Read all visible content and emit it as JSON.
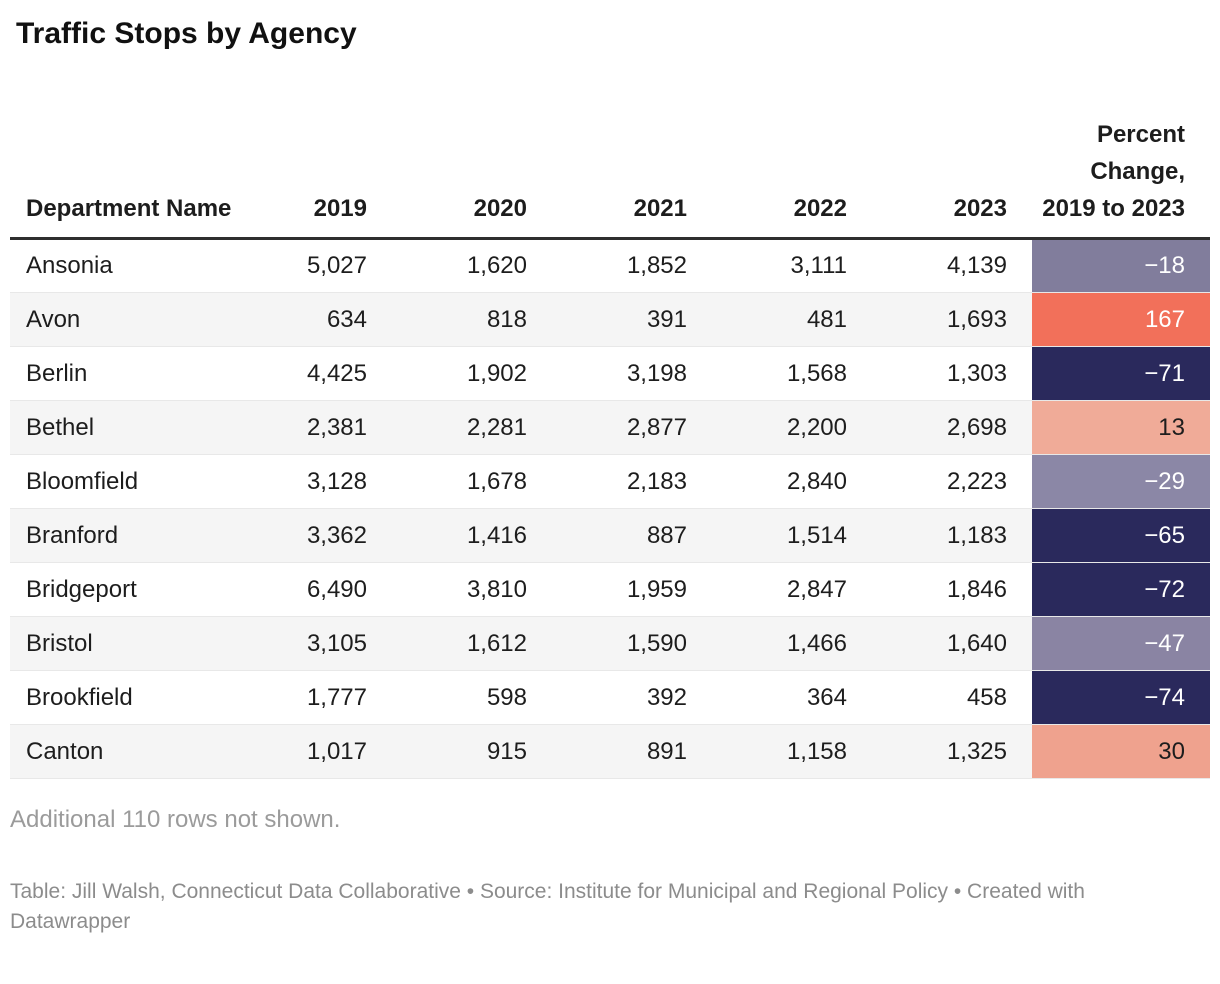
{
  "title": "Traffic Stops by Agency",
  "chart_data": {
    "type": "table",
    "title": "Traffic Stops by Agency",
    "columns": {
      "department": "Department Name",
      "years": [
        "2019",
        "2020",
        "2021",
        "2022",
        "2023"
      ],
      "percent": "Percent Change, 2019 to 2023"
    },
    "rows": [
      {
        "department": "Ansonia",
        "values": [
          "5,027",
          "1,620",
          "1,852",
          "3,111",
          "4,139"
        ],
        "percent_change": "−18",
        "cell_bg": "#817D9C",
        "cell_text": "#FFFFFF"
      },
      {
        "department": "Avon",
        "values": [
          "634",
          "818",
          "391",
          "481",
          "1,693"
        ],
        "percent_change": "167",
        "cell_bg": "#F2705A",
        "cell_text": "#FFFFFF"
      },
      {
        "department": "Berlin",
        "values": [
          "4,425",
          "1,902",
          "3,198",
          "1,568",
          "1,303"
        ],
        "percent_change": "−71",
        "cell_bg": "#2A295C",
        "cell_text": "#FFFFFF"
      },
      {
        "department": "Bethel",
        "values": [
          "2,381",
          "2,281",
          "2,877",
          "2,200",
          "2,698"
        ],
        "percent_change": "13",
        "cell_bg": "#F0AB98",
        "cell_text": "#1D1D1D"
      },
      {
        "department": "Bloomfield",
        "values": [
          "3,128",
          "1,678",
          "2,183",
          "2,840",
          "2,223"
        ],
        "percent_change": "−29",
        "cell_bg": "#8B87A6",
        "cell_text": "#FFFFFF"
      },
      {
        "department": "Branford",
        "values": [
          "3,362",
          "1,416",
          "887",
          "1,514",
          "1,183"
        ],
        "percent_change": "−65",
        "cell_bg": "#2A295C",
        "cell_text": "#FFFFFF"
      },
      {
        "department": "Bridgeport",
        "values": [
          "6,490",
          "3,810",
          "1,959",
          "2,847",
          "1,846"
        ],
        "percent_change": "−72",
        "cell_bg": "#2A295C",
        "cell_text": "#FFFFFF"
      },
      {
        "department": "Bristol",
        "values": [
          "3,105",
          "1,612",
          "1,590",
          "1,466",
          "1,640"
        ],
        "percent_change": "−47",
        "cell_bg": "#8A84A3",
        "cell_text": "#FFFFFF"
      },
      {
        "department": "Brookfield",
        "values": [
          "1,777",
          "598",
          "392",
          "364",
          "458"
        ],
        "percent_change": "−74",
        "cell_bg": "#2A295C",
        "cell_text": "#FFFFFF"
      },
      {
        "department": "Canton",
        "values": [
          "1,017",
          "915",
          "891",
          "1,158",
          "1,325"
        ],
        "percent_change": "30",
        "cell_bg": "#EFA28E",
        "cell_text": "#1D1D1D"
      }
    ],
    "layout_hints": {
      "striped_rows": true,
      "stripe_color": "#F5F5F5",
      "heatmap_column": "Percent Change, 2019 to 2023",
      "heatmap_palette": {
        "strong_negative": "#2A295C",
        "mild_negative": "#8B87A6",
        "mild_positive": "#F0AB98",
        "strong_positive": "#F2705A"
      }
    }
  },
  "notes": {
    "additional_rows": "Additional 110 rows not shown."
  },
  "footer": {
    "attribution": "Table: Jill Walsh, Connecticut Data Collaborative • Source: Institute for Municipal and Regional Policy • Created with Datawrapper"
  }
}
